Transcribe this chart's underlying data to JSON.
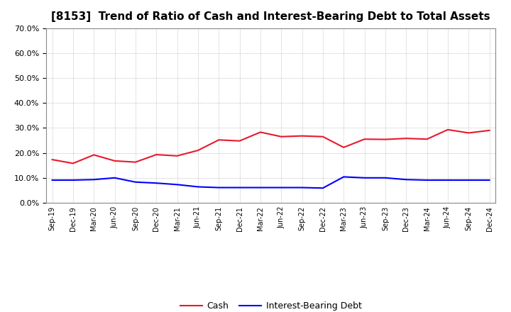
{
  "title": "[8153]  Trend of Ratio of Cash and Interest-Bearing Debt to Total Assets",
  "x_labels": [
    "Sep-19",
    "Dec-19",
    "Mar-20",
    "Jun-20",
    "Sep-20",
    "Dec-20",
    "Mar-21",
    "Jun-21",
    "Sep-21",
    "Dec-21",
    "Mar-22",
    "Jun-22",
    "Sep-22",
    "Dec-22",
    "Mar-23",
    "Jun-23",
    "Sep-23",
    "Dec-23",
    "Mar-24",
    "Jun-24",
    "Sep-24",
    "Dec-24"
  ],
  "cash": [
    0.173,
    0.158,
    0.192,
    0.168,
    0.163,
    0.193,
    0.188,
    0.21,
    0.252,
    0.248,
    0.283,
    0.265,
    0.268,
    0.265,
    0.222,
    0.255,
    0.254,
    0.258,
    0.255,
    0.293,
    0.28,
    0.29
  ],
  "interest_bearing_debt": [
    0.091,
    0.091,
    0.093,
    0.1,
    0.083,
    0.079,
    0.073,
    0.064,
    0.061,
    0.061,
    0.061,
    0.061,
    0.061,
    0.059,
    0.104,
    0.1,
    0.1,
    0.093,
    0.091,
    0.091,
    0.091,
    0.091
  ],
  "cash_color": "#e8192c",
  "debt_color": "#0000ff",
  "ylim": [
    0.0,
    0.7
  ],
  "yticks": [
    0.0,
    0.1,
    0.2,
    0.3,
    0.4,
    0.5,
    0.6,
    0.7
  ],
  "background_color": "#ffffff",
  "grid_color": "#aaaaaa",
  "legend_cash": "Cash",
  "legend_debt": "Interest-Bearing Debt",
  "title_fontsize": 11
}
